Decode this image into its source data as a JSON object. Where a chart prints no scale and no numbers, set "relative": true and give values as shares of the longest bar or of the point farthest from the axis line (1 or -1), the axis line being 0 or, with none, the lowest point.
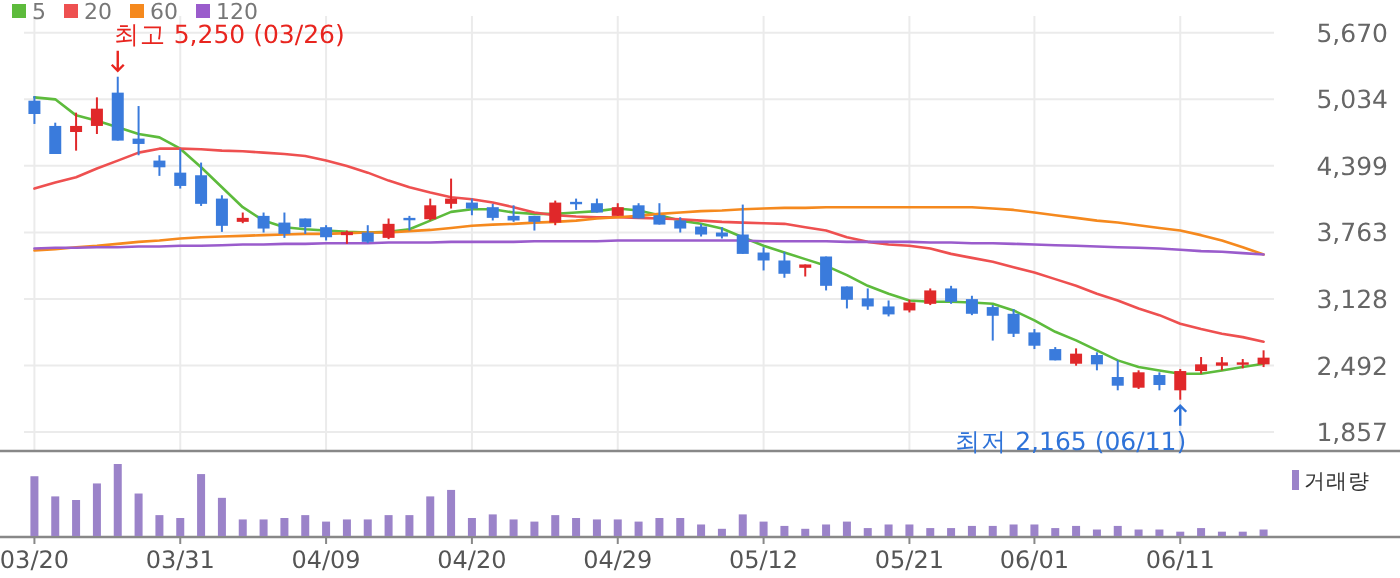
{
  "chart_data": [
    {
      "type": "candlestick",
      "categories": [
        null,
        null,
        null,
        null,
        null,
        null,
        null,
        null,
        null,
        null,
        null,
        null,
        null,
        null,
        null,
        null,
        null,
        null,
        null,
        null,
        null,
        null,
        null,
        null,
        null,
        null,
        null,
        null,
        null,
        null,
        null,
        null,
        null,
        null,
        null,
        null,
        null,
        null,
        null,
        null,
        null,
        null,
        null,
        null,
        null,
        null,
        null,
        null,
        null,
        null,
        null,
        null,
        null,
        null,
        null,
        null,
        null,
        null,
        null,
        null
      ],
      "ohlc": [
        [
          5021,
          5066,
          4799,
          4894
        ],
        [
          4780,
          4811,
          4512,
          4512
        ],
        [
          4722,
          4907,
          4544,
          4780
        ],
        [
          4780,
          5053,
          4703,
          4945
        ],
        [
          5098,
          5250,
          4640,
          4640
        ],
        [
          4659,
          4970,
          4500,
          4608
        ],
        [
          4449,
          4500,
          4303,
          4385
        ],
        [
          4334,
          4563,
          4182,
          4207
        ],
        [
          4309,
          4430,
          4016,
          4036
        ],
        [
          4086,
          4118,
          3768,
          3826
        ],
        [
          3864,
          3953,
          3851,
          3902
        ],
        [
          3921,
          3953,
          3762,
          3800
        ],
        [
          3857,
          3953,
          3711,
          3749
        ],
        [
          3896,
          3896,
          3749,
          3813
        ],
        [
          3813,
          3832,
          3686,
          3717
        ],
        [
          3737,
          3781,
          3654,
          3768
        ],
        [
          3762,
          3832,
          3660,
          3673
        ],
        [
          3711,
          3896,
          3699,
          3845
        ],
        [
          3902,
          3921,
          3781,
          3889
        ],
        [
          3889,
          4086,
          3877,
          4022
        ],
        [
          4036,
          4277,
          3991,
          4086
        ],
        [
          4048,
          4086,
          3927,
          3991
        ],
        [
          4004,
          4036,
          3877,
          3902
        ],
        [
          3921,
          4022,
          3864,
          3877
        ],
        [
          3921,
          3921,
          3781,
          3864
        ],
        [
          3857,
          4067,
          3832,
          4048
        ],
        [
          4055,
          4086,
          3978,
          4042
        ],
        [
          4042,
          4086,
          3953,
          3953
        ],
        [
          3921,
          4042,
          3921,
          4004
        ],
        [
          4022,
          4042,
          3896,
          3896
        ],
        [
          3927,
          4042,
          3838,
          3838
        ],
        [
          3877,
          3908,
          3762,
          3800
        ],
        [
          3819,
          3845,
          3724,
          3743
        ],
        [
          3762,
          3813,
          3705,
          3724
        ],
        [
          3743,
          4029,
          3558,
          3558
        ],
        [
          3571,
          3622,
          3400,
          3495
        ],
        [
          3495,
          3577,
          3330,
          3368
        ],
        [
          3425,
          3457,
          3342,
          3457
        ],
        [
          3533,
          3533,
          3209,
          3253
        ],
        [
          3247,
          3247,
          3037,
          3120
        ],
        [
          3133,
          3228,
          3024,
          3056
        ],
        [
          3056,
          3113,
          2961,
          2980
        ],
        [
          3018,
          3120,
          2999,
          3094
        ],
        [
          3081,
          3228,
          3069,
          3209
        ],
        [
          3228,
          3253,
          3081,
          3101
        ],
        [
          3126,
          3158,
          2973,
          2986
        ],
        [
          3050,
          3069,
          2730,
          2967
        ],
        [
          2986,
          3031,
          2764,
          2795
        ],
        [
          2808,
          2840,
          2649,
          2681
        ],
        [
          2649,
          2668,
          2541,
          2541
        ],
        [
          2509,
          2656,
          2490,
          2605
        ],
        [
          2592,
          2618,
          2446,
          2503
        ],
        [
          2382,
          2541,
          2255,
          2299
        ],
        [
          2280,
          2446,
          2268,
          2427
        ],
        [
          2401,
          2427,
          2255,
          2306
        ],
        [
          2255,
          2458,
          2165,
          2439
        ],
        [
          2439,
          2573,
          2414,
          2503
        ],
        [
          2490,
          2573,
          2446,
          2522
        ],
        [
          2503,
          2554,
          2465,
          2522
        ],
        [
          2503,
          2637,
          2477,
          2567
        ]
      ],
      "colors": [
        "#3a7bdc",
        "#3a7bdc",
        "#e0282a",
        "#e0282a",
        "#3a7bdc",
        "#3a7bdc",
        "#3a7bdc",
        "#3a7bdc",
        "#3a7bdc",
        "#3a7bdc",
        "#e0282a",
        "#3a7bdc",
        "#3a7bdc",
        "#3a7bdc",
        "#3a7bdc",
        "#e0282a",
        "#3a7bdc",
        "#e0282a",
        "#3a7bdc",
        "#e0282a",
        "#e0282a",
        "#3a7bdc",
        "#3a7bdc",
        "#3a7bdc",
        "#3a7bdc",
        "#e0282a",
        "#3a7bdc",
        "#3a7bdc",
        "#e0282a",
        "#3a7bdc",
        "#3a7bdc",
        "#3a7bdc",
        "#3a7bdc",
        "#3a7bdc",
        "#3a7bdc",
        "#3a7bdc",
        "#3a7bdc",
        "#e0282a",
        "#3a7bdc",
        "#3a7bdc",
        "#3a7bdc",
        "#3a7bdc",
        "#e0282a",
        "#e0282a",
        "#3a7bdc",
        "#3a7bdc",
        "#3a7bdc",
        "#3a7bdc",
        "#3a7bdc",
        "#3a7bdc",
        "#e0282a",
        "#3a7bdc",
        "#3a7bdc",
        "#e0282a",
        "#3a7bdc",
        "#e0282a",
        "#e0282a",
        "#e0282a",
        "#e0282a",
        "#e0282a"
      ],
      "series": [
        {
          "name": "5",
          "type": "line",
          "color": "#5dbb3c",
          "values": [
            5053,
            5034,
            4881,
            4830,
            4767,
            4703,
            4671,
            4563,
            4385,
            4194,
            4004,
            3876,
            3813,
            3794,
            3781,
            3768,
            3762,
            3768,
            3794,
            3876,
            3959,
            3985,
            3985,
            3953,
            3940,
            3940,
            3953,
            3966,
            3991,
            3972,
            3927,
            3876,
            3845,
            3800,
            3717,
            3635,
            3571,
            3508,
            3444,
            3355,
            3253,
            3177,
            3113,
            3101,
            3101,
            3094,
            3082,
            3018,
            2923,
            2814,
            2732,
            2636,
            2541,
            2477,
            2445,
            2414,
            2414,
            2445,
            2477,
            2509
          ]
        },
        {
          "name": "20",
          "type": "line",
          "color": "#ee5050",
          "values": [
            4182,
            4239,
            4290,
            4373,
            4449,
            4525,
            4563,
            4563,
            4557,
            4544,
            4538,
            4525,
            4512,
            4493,
            4449,
            4398,
            4334,
            4258,
            4194,
            4144,
            4099,
            4080,
            4048,
            4004,
            3953,
            3927,
            3915,
            3908,
            3908,
            3902,
            3896,
            3889,
            3876,
            3864,
            3857,
            3851,
            3845,
            3813,
            3781,
            3717,
            3673,
            3648,
            3635,
            3609,
            3558,
            3520,
            3482,
            3431,
            3380,
            3317,
            3253,
            3177,
            3113,
            3037,
            2973,
            2891,
            2840,
            2795,
            2763,
            2719
          ]
        },
        {
          "name": "60",
          "type": "line",
          "color": "#f5891e",
          "values": [
            3590,
            3603,
            3622,
            3635,
            3654,
            3673,
            3686,
            3705,
            3717,
            3724,
            3730,
            3737,
            3743,
            3749,
            3749,
            3756,
            3762,
            3762,
            3775,
            3787,
            3806,
            3826,
            3838,
            3845,
            3857,
            3864,
            3876,
            3896,
            3908,
            3921,
            3940,
            3953,
            3966,
            3972,
            3985,
            3991,
            3997,
            3997,
            4004,
            4004,
            4004,
            4004,
            4004,
            4004,
            4004,
            4004,
            3991,
            3978,
            3953,
            3927,
            3902,
            3876,
            3857,
            3832,
            3806,
            3781,
            3737,
            3686,
            3622,
            3552
          ]
        },
        {
          "name": "120",
          "type": "line",
          "color": "#9a5ccc",
          "values": [
            3609,
            3616,
            3616,
            3622,
            3622,
            3628,
            3628,
            3635,
            3635,
            3641,
            3648,
            3648,
            3654,
            3654,
            3660,
            3660,
            3660,
            3667,
            3667,
            3667,
            3673,
            3673,
            3673,
            3673,
            3679,
            3679,
            3679,
            3679,
            3686,
            3686,
            3686,
            3686,
            3686,
            3686,
            3686,
            3679,
            3679,
            3679,
            3679,
            3673,
            3673,
            3673,
            3673,
            3667,
            3667,
            3660,
            3660,
            3654,
            3648,
            3641,
            3635,
            3628,
            3622,
            3616,
            3609,
            3597,
            3584,
            3578,
            3565,
            3552
          ]
        }
      ],
      "ylim": [
        1685,
        5830
      ],
      "yticks": [
        {
          "value": 1857,
          "label": "1,857"
        },
        {
          "value": 2492,
          "label": "2,492"
        },
        {
          "value": 3128,
          "label": "3,128"
        },
        {
          "value": 3763,
          "label": "3,763"
        },
        {
          "value": 4399,
          "label": "4,399"
        },
        {
          "value": 5034,
          "label": "5,034"
        },
        {
          "value": 5670,
          "label": "5,670"
        }
      ],
      "annotations": [
        "최고 5,250 (03/26)",
        "최저 2,165 (06/11)"
      ],
      "grid": true,
      "legend": "top left",
      "tick_labels": "y"
    },
    {
      "type": "bar",
      "relative": true,
      "categories": [
        "03/20",
        null,
        null,
        null,
        null,
        null,
        null,
        "03/31",
        null,
        null,
        null,
        null,
        null,
        null,
        "04/09",
        null,
        null,
        null,
        null,
        null,
        null,
        "04/20",
        null,
        null,
        null,
        null,
        null,
        null,
        "04/29",
        null,
        null,
        null,
        null,
        null,
        null,
        "05/12",
        null,
        null,
        null,
        null,
        null,
        null,
        "05/21",
        null,
        null,
        null,
        null,
        null,
        "06/01",
        null,
        null,
        null,
        null,
        null,
        null,
        "06/11",
        null,
        null,
        null,
        null
      ],
      "series": [
        {
          "name": "거래량",
          "color": "#9b83c9",
          "values": [
            0.83,
            0.55,
            0.5,
            0.73,
            1,
            0.59,
            0.29,
            0.25,
            0.86,
            0.53,
            0.23,
            0.23,
            0.25,
            0.29,
            0.2,
            0.23,
            0.23,
            0.29,
            0.29,
            0.55,
            0.64,
            0.25,
            0.3,
            0.23,
            0.2,
            0.29,
            0.25,
            0.23,
            0.23,
            0.2,
            0.25,
            0.25,
            0.16,
            0.1,
            0.3,
            0.2,
            0.14,
            0.1,
            0.16,
            0.2,
            0.11,
            0.16,
            0.16,
            0.11,
            0.11,
            0.14,
            0.14,
            0.16,
            0.16,
            0.11,
            0.14,
            0.09,
            0.14,
            0.09,
            0.09,
            0.06,
            0.11,
            0.06,
            0.06,
            0.09
          ]
        }
      ],
      "legend": "top right",
      "tick_labels": "x"
    }
  ]
}
